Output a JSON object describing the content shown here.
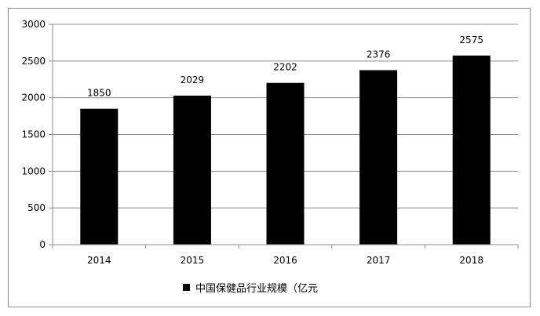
{
  "chart_data": {
    "type": "bar",
    "categories": [
      "2014",
      "2015",
      "2016",
      "2017",
      "2018"
    ],
    "series": [
      {
        "name": "中国保健品行业规模（亿元",
        "values": [
          1850,
          2029,
          2202,
          2376,
          2575
        ],
        "color": "#000000"
      }
    ],
    "data_labels": [
      "1850",
      "2029",
      "2202",
      "2376",
      "2575"
    ],
    "ylim": [
      0,
      3000
    ],
    "yticks": [
      0,
      500,
      1000,
      1500,
      2000,
      2500,
      3000
    ],
    "grid": true,
    "legend_position": "bottom",
    "title": "",
    "xlabel": "",
    "ylabel": ""
  }
}
